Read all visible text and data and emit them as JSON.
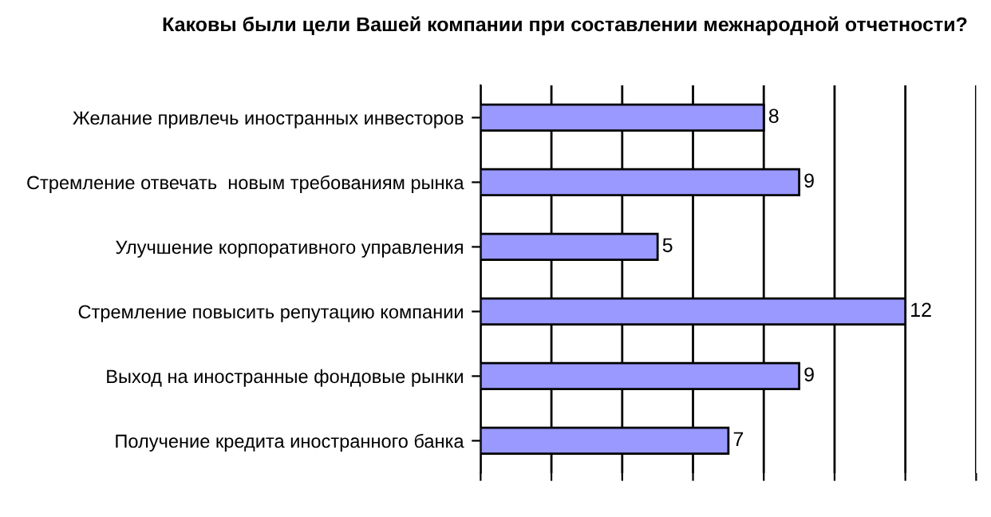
{
  "chart_data": {
    "type": "bar",
    "orientation": "horizontal",
    "title": "Каковы были цели Вашей компании при составлении межнародной отчетности?",
    "categories": [
      "Желание привлечь иностранных инвесторов",
      "Стремление отвечать  новым требованиям рынка",
      "Улучшение корпоративного управления",
      "Стремление повысить репутацию компании",
      "Выход на иностранные фондовые рынки",
      "Получение кредита иностранного банка"
    ],
    "values": [
      8,
      9,
      5,
      12,
      9,
      7
    ],
    "color": "#9999ff",
    "xlim": [
      0,
      14
    ],
    "xticks": [
      {
        "value": 0,
        "label": null
      },
      {
        "value": 2,
        "label": null
      },
      {
        "value": 4,
        "label": null
      },
      {
        "value": 6,
        "label": null
      },
      {
        "value": 8,
        "label": null
      },
      {
        "value": 10,
        "label": null
      },
      {
        "value": 12,
        "label": null
      },
      {
        "value": 14,
        "label": null
      }
    ],
    "tick_labels": "y",
    "grid": "x",
    "data_labels": true,
    "legend": false
  }
}
